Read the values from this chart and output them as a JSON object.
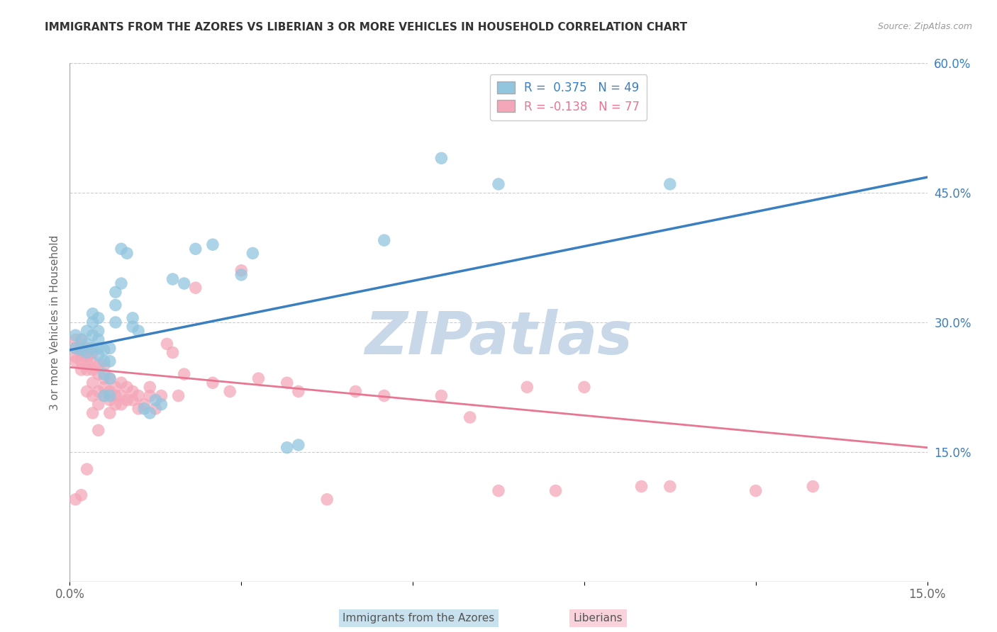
{
  "title": "IMMIGRANTS FROM THE AZORES VS LIBERIAN 3 OR MORE VEHICLES IN HOUSEHOLD CORRELATION CHART",
  "source": "Source: ZipAtlas.com",
  "ylabel": "3 or more Vehicles in Household",
  "x_min": 0.0,
  "x_max": 0.15,
  "y_min": 0.0,
  "y_max": 0.6,
  "x_ticks": [
    0.0,
    0.03,
    0.06,
    0.09,
    0.12,
    0.15
  ],
  "x_tick_labels": [
    "0.0%",
    "",
    "",
    "",
    "",
    "15.0%"
  ],
  "y_ticks_right": [
    0.15,
    0.3,
    0.45,
    0.6
  ],
  "y_tick_labels_right": [
    "15.0%",
    "30.0%",
    "45.0%",
    "60.0%"
  ],
  "legend_azores": "R =  0.375   N = 49",
  "legend_liberian": "R = -0.138   N = 77",
  "azores_color": "#92C5DE",
  "liberian_color": "#F4A7B9",
  "azores_line_color": "#3A7FBF",
  "liberian_line_color": "#E87693",
  "watermark": "ZIPatlas",
  "watermark_color": "#C8D8E8",
  "az_line_x0": 0.0,
  "az_line_y0": 0.268,
  "az_line_x1": 0.15,
  "az_line_y1": 0.468,
  "lib_line_x0": 0.0,
  "lib_line_y0": 0.248,
  "lib_line_x1": 0.15,
  "lib_line_y1": 0.155,
  "azores_x": [
    0.001,
    0.001,
    0.002,
    0.002,
    0.003,
    0.003,
    0.003,
    0.004,
    0.004,
    0.004,
    0.004,
    0.005,
    0.005,
    0.005,
    0.005,
    0.005,
    0.006,
    0.006,
    0.006,
    0.006,
    0.007,
    0.007,
    0.007,
    0.007,
    0.008,
    0.008,
    0.008,
    0.009,
    0.009,
    0.01,
    0.011,
    0.011,
    0.012,
    0.013,
    0.014,
    0.015,
    0.016,
    0.018,
    0.02,
    0.022,
    0.025,
    0.03,
    0.032,
    0.038,
    0.04,
    0.055,
    0.065,
    0.075,
    0.105
  ],
  "azores_y": [
    0.27,
    0.285,
    0.268,
    0.28,
    0.265,
    0.275,
    0.29,
    0.27,
    0.285,
    0.3,
    0.31,
    0.262,
    0.27,
    0.28,
    0.29,
    0.305,
    0.215,
    0.24,
    0.255,
    0.268,
    0.215,
    0.235,
    0.255,
    0.27,
    0.3,
    0.32,
    0.335,
    0.345,
    0.385,
    0.38,
    0.295,
    0.305,
    0.29,
    0.2,
    0.195,
    0.21,
    0.205,
    0.35,
    0.345,
    0.385,
    0.39,
    0.355,
    0.38,
    0.155,
    0.158,
    0.395,
    0.49,
    0.46,
    0.46
  ],
  "liberian_x": [
    0.001,
    0.001,
    0.001,
    0.001,
    0.001,
    0.002,
    0.002,
    0.002,
    0.002,
    0.002,
    0.002,
    0.003,
    0.003,
    0.003,
    0.003,
    0.003,
    0.003,
    0.004,
    0.004,
    0.004,
    0.004,
    0.004,
    0.004,
    0.005,
    0.005,
    0.005,
    0.005,
    0.005,
    0.006,
    0.006,
    0.006,
    0.006,
    0.007,
    0.007,
    0.007,
    0.007,
    0.008,
    0.008,
    0.008,
    0.009,
    0.009,
    0.009,
    0.01,
    0.01,
    0.011,
    0.011,
    0.012,
    0.012,
    0.013,
    0.014,
    0.014,
    0.015,
    0.016,
    0.017,
    0.018,
    0.019,
    0.02,
    0.022,
    0.025,
    0.028,
    0.03,
    0.033,
    0.038,
    0.04,
    0.045,
    0.05,
    0.055,
    0.065,
    0.07,
    0.075,
    0.08,
    0.085,
    0.09,
    0.1,
    0.105,
    0.12,
    0.13
  ],
  "liberian_y": [
    0.095,
    0.255,
    0.26,
    0.27,
    0.28,
    0.1,
    0.245,
    0.255,
    0.265,
    0.27,
    0.28,
    0.13,
    0.22,
    0.245,
    0.255,
    0.26,
    0.27,
    0.195,
    0.215,
    0.23,
    0.245,
    0.255,
    0.265,
    0.175,
    0.205,
    0.22,
    0.24,
    0.25,
    0.215,
    0.225,
    0.235,
    0.25,
    0.195,
    0.21,
    0.22,
    0.235,
    0.205,
    0.215,
    0.225,
    0.205,
    0.215,
    0.23,
    0.21,
    0.225,
    0.21,
    0.22,
    0.2,
    0.215,
    0.205,
    0.215,
    0.225,
    0.2,
    0.215,
    0.275,
    0.265,
    0.215,
    0.24,
    0.34,
    0.23,
    0.22,
    0.36,
    0.235,
    0.23,
    0.22,
    0.095,
    0.22,
    0.215,
    0.215,
    0.19,
    0.105,
    0.225,
    0.105,
    0.225,
    0.11,
    0.11,
    0.105,
    0.11
  ]
}
